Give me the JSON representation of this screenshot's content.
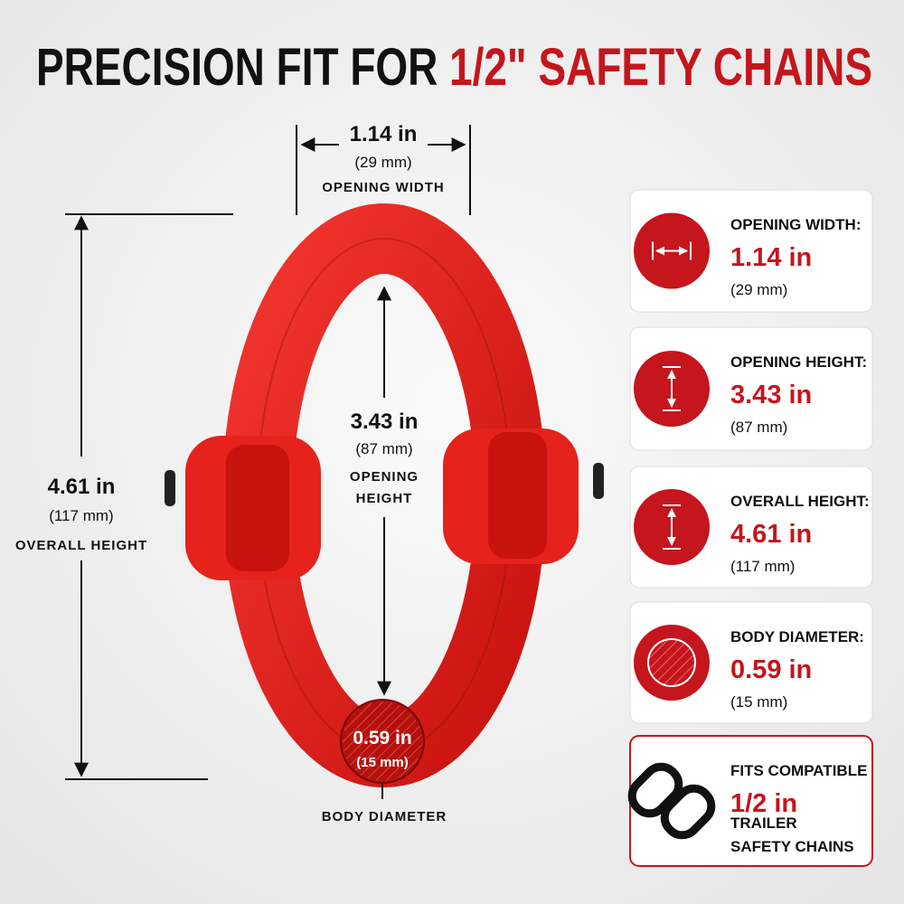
{
  "title": {
    "lead": "PRECISION FIT FOR",
    "highlight": "1/2\" SAFETY CHAINS"
  },
  "dimensions": {
    "opening_width": {
      "value": "1.14 in",
      "metric": "(29 mm)",
      "label": "OPENING WIDTH"
    },
    "opening_height": {
      "value": "3.43 in",
      "metric": "(87 mm)",
      "label": [
        "OPENING",
        "HEIGHT"
      ]
    },
    "overall_height": {
      "value": "4.61 in",
      "metric": "(117 mm)",
      "label": "OVERALL HEIGHT"
    },
    "body_diameter": {
      "value": "0.59 in",
      "metric": "(15 mm)",
      "label": "BODY DIAMETER"
    }
  },
  "cards": [
    {
      "label": "OPENING WIDTH:",
      "value": "1.14 in",
      "metric": "(29 mm)"
    },
    {
      "label": "OPENING HEIGHT:",
      "value": "3.43 in",
      "metric": "(87 mm)"
    },
    {
      "label": "OVERALL HEIGHT:",
      "value": "4.61 in",
      "metric": "(117 mm)"
    },
    {
      "label": "BODY DIAMETER:",
      "value": "0.59 in",
      "metric": "(15 mm)"
    },
    {
      "label": "FITS COMPATIBLE",
      "value": "1/2 in",
      "lines": [
        "TRAILER",
        "SAFETY CHAINS"
      ]
    }
  ]
}
